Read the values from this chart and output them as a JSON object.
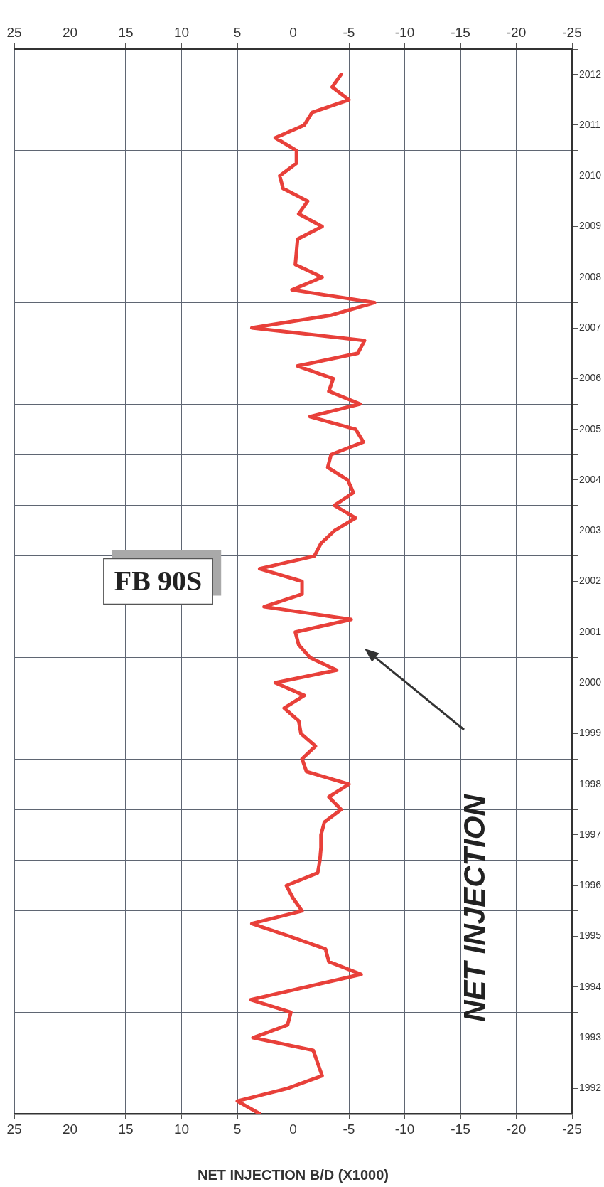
{
  "chart_data": {
    "type": "line",
    "title": "FB 90S",
    "xlabel": "NET INJECTION B/D (X1000)",
    "x": [
      3.0,
      5.0,
      0.5,
      -2.6,
      -1.8,
      3.6,
      0.5,
      0.2,
      3.8,
      -6.1,
      -3.2,
      -2.9,
      0.3,
      3.7,
      -0.8,
      0.0,
      0.6,
      -2.2,
      -2.4,
      -2.5,
      -2.5,
      -2.8,
      -4.3,
      -3.2,
      -5.0,
      -1.2,
      -0.8,
      -2.0,
      -0.7,
      -0.5,
      0.8,
      -1.0,
      1.6,
      -3.9,
      -1.5,
      -0.5,
      -0.2,
      -5.2,
      2.6,
      -0.8,
      -0.8,
      3.0,
      -1.9,
      -2.5,
      -3.7,
      -5.6,
      -3.7,
      -5.4,
      -4.9,
      -3.1,
      -3.4,
      -6.3,
      -5.6,
      -1.5,
      -6.0,
      -3.2,
      -3.6,
      -0.4,
      -5.8,
      -6.4,
      3.7,
      -3.4,
      -7.3,
      0.1,
      -2.6,
      -0.2,
      -0.3,
      -0.4,
      -2.6,
      -0.5,
      -1.3,
      0.9,
      1.2,
      -0.3,
      -0.3,
      1.6,
      -1.0,
      -1.7,
      -5.0,
      -3.5,
      -4.3
    ],
    "series": [
      {
        "color": "#e8403a",
        "values": [
          1992.0,
          1992.25,
          1992.5,
          1992.75,
          1993.25,
          1993.5,
          1993.75,
          1994.0,
          1994.25,
          1994.75,
          1995.0,
          1995.25,
          1995.5,
          1995.75,
          1996.0,
          1996.25,
          1996.5,
          1996.75,
          1997.0,
          1997.25,
          1997.5,
          1997.75,
          1998.0,
          1998.25,
          1998.5,
          1998.75,
          1999.0,
          1999.25,
          1999.5,
          1999.75,
          2000.0,
          2000.25,
          2000.5,
          2000.75,
          2001.0,
          2001.25,
          2001.5,
          2001.75,
          2002.0,
          2002.25,
          2002.5,
          2002.75,
          2003.0,
          2003.25,
          2003.5,
          2003.75,
          2004.0,
          2004.25,
          2004.5,
          2004.75,
          2005.0,
          2005.25,
          2005.5,
          2005.75,
          2006.0,
          2006.25,
          2006.5,
          2006.75,
          2007.0,
          2007.25,
          2007.5,
          2007.75,
          2008.0,
          2008.25,
          2008.5,
          2008.75,
          2009.0,
          2009.25,
          2009.5,
          2009.75,
          2010.0,
          2010.25,
          2010.5,
          2010.75,
          2011.0,
          2011.25,
          2011.5,
          2011.75,
          2012.0,
          2012.25,
          2012.5
        ]
      }
    ],
    "xlim": [
      25,
      -25
    ],
    "xticks": [
      25,
      20,
      15,
      10,
      5,
      0,
      -5,
      -10,
      -15,
      -20,
      -25
    ],
    "x2lim": [
      25,
      -25
    ],
    "x2ticks": [
      25,
      20,
      15,
      10,
      5,
      0,
      -5,
      -10,
      -15,
      -20,
      -25
    ],
    "ylim": [
      1992,
      2013
    ],
    "yticks": [
      {
        "value": 1992,
        "label": null
      },
      {
        "value": 1992.5,
        "label": "1992"
      },
      {
        "value": 1993,
        "label": null
      },
      {
        "value": 1993.5,
        "label": "1993"
      },
      {
        "value": 1994,
        "label": null
      },
      {
        "value": 1994.5,
        "label": "1994"
      },
      {
        "value": 1995,
        "label": null
      },
      {
        "value": 1995.5,
        "label": "1995"
      },
      {
        "value": 1996,
        "label": null
      },
      {
        "value": 1996.5,
        "label": "1996"
      },
      {
        "value": 1997,
        "label": null
      },
      {
        "value": 1997.5,
        "label": "1997"
      },
      {
        "value": 1998,
        "label": null
      },
      {
        "value": 1998.5,
        "label": "1998"
      },
      {
        "value": 1999,
        "label": null
      },
      {
        "value": 1999.5,
        "label": "1999"
      },
      {
        "value": 2000,
        "label": null
      },
      {
        "value": 2000.5,
        "label": "2000"
      },
      {
        "value": 2001,
        "label": null
      },
      {
        "value": 2001.5,
        "label": "2001"
      },
      {
        "value": 2002,
        "label": null
      },
      {
        "value": 2002.5,
        "label": "2002"
      },
      {
        "value": 2003,
        "label": null
      },
      {
        "value": 2003.5,
        "label": "2003"
      },
      {
        "value": 2004,
        "label": null
      },
      {
        "value": 2004.5,
        "label": "2004"
      },
      {
        "value": 2005,
        "label": null
      },
      {
        "value": 2005.5,
        "label": "2005"
      },
      {
        "value": 2006,
        "label": null
      },
      {
        "value": 2006.5,
        "label": "2006"
      },
      {
        "value": 2007,
        "label": null
      },
      {
        "value": 2007.5,
        "label": "2007"
      },
      {
        "value": 2008,
        "label": null
      },
      {
        "value": 2008.5,
        "label": "2008"
      },
      {
        "value": 2009,
        "label": null
      },
      {
        "value": 2009.5,
        "label": "2009"
      },
      {
        "value": 2010,
        "label": null
      },
      {
        "value": 2010.5,
        "label": "2010"
      },
      {
        "value": 2011,
        "label": null
      },
      {
        "value": 2011.5,
        "label": "2011"
      },
      {
        "value": 2012,
        "label": null
      },
      {
        "value": 2012.5,
        "label": "2012"
      },
      {
        "value": 2013,
        "label": null
      }
    ],
    "grid": true,
    "marker": "none",
    "line_style": "solid",
    "annotations": [
      "NET INJECTION"
    ]
  }
}
